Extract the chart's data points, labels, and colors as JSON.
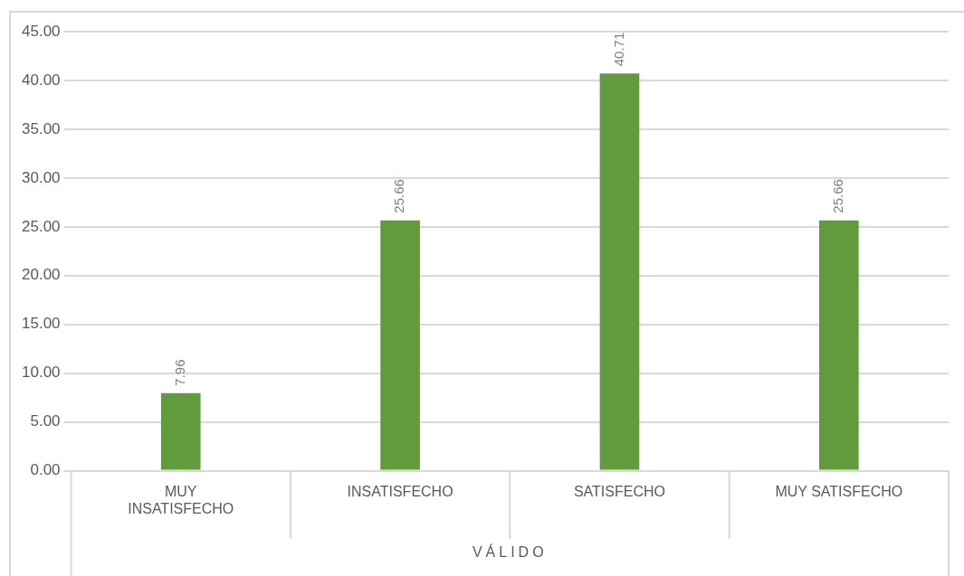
{
  "chart_data": {
    "type": "bar",
    "xlabel": "VÁLIDO",
    "categories": [
      "MUY INSATISFECHO",
      "INSATISFECHO",
      "SATISFECHO",
      "MUY SATISFECHO"
    ],
    "values": [
      7.96,
      25.66,
      40.71,
      25.66
    ],
    "color": "#629a3e",
    "ylim": [
      0,
      45
    ],
    "yticks": [
      {
        "value": 0,
        "label": "0.00"
      },
      {
        "value": 5,
        "label": "5.00"
      },
      {
        "value": 10,
        "label": "10.00"
      },
      {
        "value": 15,
        "label": "15.00"
      },
      {
        "value": 20,
        "label": "20.00"
      },
      {
        "value": 25,
        "label": "25.00"
      },
      {
        "value": 30,
        "label": "30.00"
      },
      {
        "value": 35,
        "label": "35.00"
      },
      {
        "value": 40,
        "label": "40.00"
      },
      {
        "value": 45,
        "label": "45.00"
      }
    ],
    "grid": true,
    "data_labels": true
  }
}
